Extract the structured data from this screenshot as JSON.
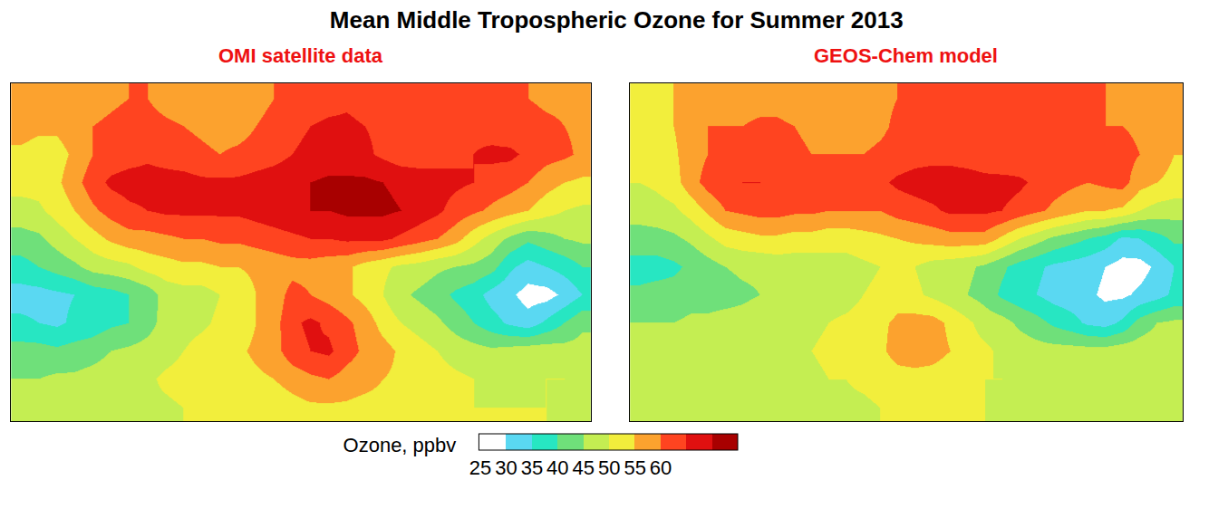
{
  "title": "Mean Middle Tropospheric Ozone for Summer 2013",
  "colorbar": {
    "title": "Ozone, ppbv",
    "range": [
      25,
      75
    ],
    "ticks": [
      25,
      30,
      35,
      40,
      45,
      50,
      55,
      60
    ],
    "colors": [
      "#ffffff",
      "#5ad8f2",
      "#27e6c2",
      "#6fe07a",
      "#c4ee52",
      "#f2ee3c",
      "#fca22e",
      "#ff4420",
      "#e01010",
      "#a80000"
    ]
  },
  "chart_data": [
    {
      "type": "heatmap",
      "title": "OMI satellite data",
      "tick_labels": false,
      "xlim": [
        -160,
        160
      ],
      "ylim": [
        -45,
        75
      ],
      "x": [
        -155,
        -145,
        -135,
        -125,
        -115,
        -105,
        -95,
        -85,
        -75,
        -65,
        -55,
        -45,
        -35,
        -25,
        -15,
        -5,
        5,
        15,
        25,
        35,
        45,
        55,
        65,
        75,
        85,
        95,
        105,
        115,
        125,
        135,
        145,
        155
      ],
      "y": [
        -40,
        -30,
        -20,
        -10,
        0,
        10,
        20,
        30,
        40,
        50,
        60,
        70
      ],
      "z": [
        [
          46,
          46,
          47,
          47,
          47,
          48,
          48,
          49,
          49,
          50,
          50,
          50,
          51,
          51,
          52,
          53,
          54,
          54,
          54,
          53,
          53,
          52,
          52,
          51,
          51,
          50,
          50,
          50,
          50,
          50,
          49,
          49
        ],
        [
          45,
          45,
          46,
          46,
          47,
          48,
          48,
          49,
          51,
          52,
          52,
          52,
          53,
          54,
          55,
          57,
          59,
          60,
          58,
          57,
          55,
          54,
          53,
          52,
          51,
          50,
          49,
          49,
          49,
          50,
          50,
          49
        ],
        [
          42,
          42,
          41,
          42,
          43,
          45,
          46,
          47,
          48,
          50,
          52,
          53,
          54,
          56,
          58,
          63,
          65,
          66,
          62,
          59,
          57,
          54,
          52,
          50,
          48,
          47,
          46,
          47,
          48,
          48,
          47,
          47
        ],
        [
          36,
          35,
          34,
          36,
          37,
          39,
          40,
          43,
          47,
          48,
          49,
          51,
          52,
          55,
          58,
          64,
          66,
          64,
          61,
          58,
          53,
          50,
          48,
          46,
          43,
          40,
          37,
          34,
          32,
          36,
          40,
          44
        ],
        [
          33,
          33,
          34,
          35,
          37,
          38,
          40,
          42,
          47,
          48,
          48,
          50,
          52,
          55,
          57,
          62,
          60,
          58,
          56,
          53,
          50,
          46,
          44,
          42,
          39,
          37,
          33,
          31,
          28,
          28,
          31,
          35
        ],
        [
          38,
          40,
          42,
          44,
          47,
          48,
          49,
          52,
          53,
          54,
          54,
          55,
          55,
          56,
          57,
          58,
          58,
          57,
          56,
          53,
          51,
          49,
          48,
          46,
          45,
          44,
          42,
          36,
          33,
          35,
          37,
          40
        ],
        [
          43,
          44,
          47,
          50,
          53,
          56,
          58,
          58,
          59,
          60,
          60,
          61,
          61,
          62,
          63,
          64,
          65,
          65,
          66,
          66,
          66,
          64,
          62,
          60,
          57,
          52,
          48,
          44,
          41,
          43,
          45,
          46
        ],
        [
          48,
          49,
          52,
          55,
          59,
          62,
          64,
          65,
          66,
          66,
          66,
          66,
          66,
          67,
          68,
          69,
          70,
          70,
          71,
          71,
          71,
          70,
          68,
          66,
          63,
          61,
          59,
          57,
          55,
          52,
          50,
          49
        ],
        [
          52,
          52,
          54,
          58,
          63,
          66,
          67,
          67,
          67,
          67,
          66,
          66,
          66,
          67,
          68,
          69,
          70,
          71,
          71,
          71,
          70,
          69,
          68,
          67,
          66,
          65,
          63,
          62,
          60,
          57,
          55,
          54
        ],
        [
          54,
          53,
          53,
          56,
          60,
          62,
          63,
          64,
          63,
          62,
          61,
          60,
          61,
          62,
          63,
          65,
          66,
          67,
          67,
          66,
          64,
          62,
          62,
          63,
          64,
          65,
          66,
          66,
          64,
          62,
          61,
          59
        ],
        [
          57,
          56,
          56,
          58,
          60,
          61,
          62,
          62,
          61,
          60,
          59,
          58,
          58,
          60,
          62,
          64,
          65,
          66,
          66,
          65,
          64,
          63,
          63,
          64,
          64,
          64,
          63,
          62,
          62,
          61,
          60,
          59
        ],
        [
          58,
          58,
          57,
          57,
          58,
          59,
          60,
          60,
          58,
          57,
          56,
          56,
          57,
          58,
          60,
          62,
          62,
          63,
          64,
          63,
          62,
          62,
          62,
          63,
          62,
          62,
          61,
          60,
          60,
          59,
          59,
          58
        ]
      ]
    },
    {
      "type": "heatmap",
      "title": "GEOS-Chem model",
      "tick_labels": false,
      "xlim": [
        -160,
        160
      ],
      "ylim": [
        -45,
        75
      ],
      "x": [
        -155,
        -145,
        -135,
        -125,
        -115,
        -105,
        -95,
        -85,
        -75,
        -65,
        -55,
        -45,
        -35,
        -25,
        -15,
        -5,
        5,
        15,
        25,
        35,
        45,
        55,
        65,
        75,
        85,
        95,
        105,
        115,
        125,
        135,
        145,
        155
      ],
      "y": [
        -40,
        -30,
        -20,
        -10,
        0,
        10,
        20,
        30,
        40,
        50,
        60,
        70
      ],
      "z": [
        [
          48,
          48,
          48,
          48,
          48,
          48,
          48,
          48,
          48,
          49,
          49,
          49,
          49,
          49,
          50,
          50,
          50,
          50,
          50,
          50,
          50,
          49,
          49,
          49,
          49,
          49,
          49,
          49,
          48,
          48,
          48,
          48
        ],
        [
          48,
          48,
          48,
          48,
          48,
          48,
          48,
          48,
          49,
          49,
          49,
          50,
          50,
          51,
          52,
          53,
          53,
          53,
          52,
          51,
          50,
          50,
          49,
          49,
          49,
          48,
          48,
          48,
          48,
          48,
          48,
          48
        ],
        [
          47,
          47,
          47,
          48,
          48,
          48,
          48,
          48,
          49,
          49,
          50,
          51,
          52,
          53,
          54,
          57,
          58,
          57,
          55,
          52,
          51,
          49,
          48,
          47,
          47,
          47,
          47,
          47,
          48,
          48,
          48,
          47
        ],
        [
          45,
          45,
          45,
          46,
          46,
          47,
          47,
          48,
          48,
          49,
          49,
          50,
          51,
          52,
          54,
          56,
          57,
          57,
          54,
          51,
          48,
          47,
          44,
          42,
          39,
          37,
          34,
          33,
          36,
          42,
          45,
          46
        ],
        [
          41,
          42,
          42,
          43,
          43,
          43,
          44,
          45,
          46,
          47,
          47,
          48,
          48,
          50,
          51,
          53,
          51,
          49,
          47,
          45,
          43,
          39,
          37,
          35,
          33,
          32,
          31,
          29,
          29,
          31,
          33,
          36
        ],
        [
          38,
          38,
          39,
          41,
          43,
          45,
          46,
          46,
          47,
          47,
          47,
          48,
          48,
          49,
          50,
          51,
          50,
          48,
          47,
          46,
          44,
          41,
          38,
          36,
          34,
          33,
          32,
          30,
          28,
          28,
          31,
          35
        ],
        [
          43,
          43,
          44,
          46,
          49,
          52,
          53,
          54,
          54,
          53,
          53,
          52,
          52,
          53,
          54,
          55,
          56,
          57,
          58,
          58,
          58,
          54,
          50,
          47,
          44,
          42,
          40,
          38,
          34,
          35,
          38,
          41
        ],
        [
          47,
          48,
          49,
          52,
          56,
          60,
          61,
          62,
          62,
          61,
          61,
          60,
          60,
          60,
          60,
          62,
          63,
          64,
          66,
          66,
          66,
          65,
          63,
          61,
          59,
          57,
          55,
          55,
          54,
          50,
          48,
          47
        ],
        [
          50,
          51,
          53,
          58,
          62,
          64,
          65,
          65,
          64,
          63,
          62,
          62,
          62,
          63,
          64,
          66,
          67,
          68,
          68,
          68,
          67,
          67,
          66,
          64,
          62,
          61,
          60,
          61,
          62,
          57,
          55,
          54
        ],
        [
          52,
          53,
          54,
          58,
          60,
          61,
          62,
          63,
          62,
          61,
          60,
          60,
          60,
          60,
          61,
          62,
          63,
          63,
          63,
          62,
          61,
          60,
          61,
          62,
          62,
          63,
          63,
          63,
          62,
          60,
          57,
          55
        ],
        [
          54,
          54,
          55,
          58,
          60,
          60,
          60,
          61,
          61,
          60,
          59,
          58,
          58,
          58,
          59,
          61,
          62,
          62,
          62,
          62,
          61,
          60,
          60,
          61,
          61,
          61,
          61,
          60,
          60,
          59,
          58,
          58
        ],
        [
          54,
          54,
          55,
          56,
          57,
          58,
          58,
          58,
          58,
          57,
          56,
          56,
          57,
          58,
          59,
          60,
          60,
          61,
          61,
          61,
          60,
          60,
          60,
          61,
          61,
          60,
          60,
          60,
          59,
          58,
          58,
          57
        ]
      ]
    }
  ]
}
